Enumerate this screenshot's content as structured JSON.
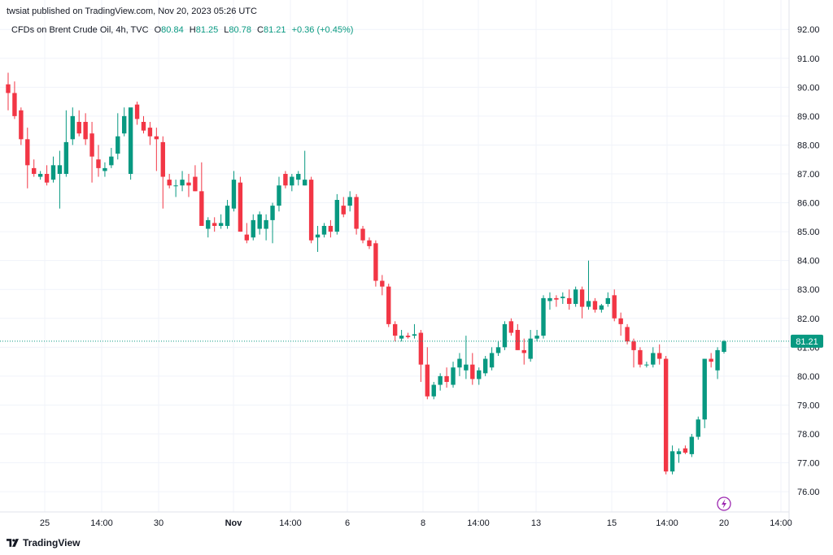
{
  "header": {
    "published": "twsiat published on TradingView.com, Nov 20, 2023 05:26 UTC"
  },
  "legend": {
    "symbol": "CFDs on Brent Crude Oil, 4h, TVC",
    "open_label": "O",
    "open": "80.84",
    "high_label": "H",
    "high": "81.25",
    "low_label": "L",
    "low": "80.78",
    "close_label": "C",
    "close": "81.21",
    "change": "+0.36 (+0.45%)"
  },
  "footer": {
    "brand": "TradingView"
  },
  "colors": {
    "up": "#089981",
    "down": "#f23645",
    "grid": "#f0f3fa",
    "price_line": "#089981",
    "accent": "#9c27b0"
  },
  "icons": {
    "replay": "lightning-icon",
    "logo": "tradingview-logo-icon"
  },
  "chart_data": {
    "type": "candlestick",
    "title": "CFDs on Brent Crude Oil, 4h, TVC",
    "ylim": [
      75.3,
      92.4
    ],
    "y_ticks": [
      "92.00",
      "91.00",
      "90.00",
      "89.00",
      "88.00",
      "87.00",
      "86.00",
      "85.00",
      "84.00",
      "83.00",
      "82.00",
      "81.00",
      "80.00",
      "79.00",
      "78.00",
      "77.00",
      "76.00"
    ],
    "x_ticks": [
      "25",
      "14:00",
      "30",
      "Nov",
      "14:00",
      "6",
      "8",
      "14:00",
      "13",
      "15",
      "14:00",
      "20",
      "14:00"
    ],
    "last_price": "81.21",
    "series": [
      {
        "o": 90.1,
        "h": 90.5,
        "l": 89.2,
        "c": 89.8
      },
      {
        "o": 89.8,
        "h": 90.2,
        "l": 88.9,
        "c": 89.0
      },
      {
        "o": 89.2,
        "h": 89.3,
        "l": 88.0,
        "c": 88.2
      },
      {
        "o": 88.2,
        "h": 88.6,
        "l": 86.5,
        "c": 87.3
      },
      {
        "o": 87.2,
        "h": 87.5,
        "l": 86.9,
        "c": 87.0
      },
      {
        "o": 86.9,
        "h": 87.1,
        "l": 86.8,
        "c": 87.0
      },
      {
        "o": 87.0,
        "h": 87.3,
        "l": 86.6,
        "c": 86.7
      },
      {
        "o": 86.8,
        "h": 87.6,
        "l": 86.7,
        "c": 87.3
      },
      {
        "o": 87.0,
        "h": 87.8,
        "l": 85.8,
        "c": 87.3
      },
      {
        "o": 87.0,
        "h": 89.2,
        "l": 86.9,
        "c": 88.1
      },
      {
        "o": 88.2,
        "h": 89.3,
        "l": 88.0,
        "c": 89.0
      },
      {
        "o": 88.8,
        "h": 89.2,
        "l": 88.3,
        "c": 88.4
      },
      {
        "o": 88.8,
        "h": 89.1,
        "l": 88.0,
        "c": 88.2
      },
      {
        "o": 88.4,
        "h": 88.8,
        "l": 86.7,
        "c": 87.6
      },
      {
        "o": 87.5,
        "h": 88.0,
        "l": 86.9,
        "c": 87.2
      },
      {
        "o": 87.1,
        "h": 87.4,
        "l": 86.9,
        "c": 87.2
      },
      {
        "o": 87.3,
        "h": 87.9,
        "l": 87.2,
        "c": 87.6
      },
      {
        "o": 87.7,
        "h": 89.1,
        "l": 87.5,
        "c": 88.3
      },
      {
        "o": 88.4,
        "h": 89.3,
        "l": 88.3,
        "c": 89.0
      },
      {
        "o": 87.0,
        "h": 89.2,
        "l": 86.8,
        "c": 89.3
      },
      {
        "o": 89.4,
        "h": 89.5,
        "l": 88.7,
        "c": 88.9
      },
      {
        "o": 88.8,
        "h": 89.0,
        "l": 88.4,
        "c": 88.5
      },
      {
        "o": 88.6,
        "h": 88.8,
        "l": 88.0,
        "c": 88.3
      },
      {
        "o": 88.3,
        "h": 88.6,
        "l": 87.1,
        "c": 88.2
      },
      {
        "o": 88.1,
        "h": 88.3,
        "l": 85.8,
        "c": 86.9
      },
      {
        "o": 86.8,
        "h": 87.0,
        "l": 86.5,
        "c": 86.6
      },
      {
        "o": 86.6,
        "h": 86.8,
        "l": 86.2,
        "c": 86.6
      },
      {
        "o": 86.6,
        "h": 87.1,
        "l": 86.4,
        "c": 86.8
      },
      {
        "o": 86.7,
        "h": 87.0,
        "l": 86.2,
        "c": 86.6
      },
      {
        "o": 86.9,
        "h": 87.3,
        "l": 86.4,
        "c": 86.4
      },
      {
        "o": 86.4,
        "h": 87.4,
        "l": 85.2,
        "c": 85.2
      },
      {
        "o": 85.1,
        "h": 85.5,
        "l": 84.8,
        "c": 85.4
      },
      {
        "o": 85.3,
        "h": 85.5,
        "l": 85.0,
        "c": 85.2
      },
      {
        "o": 85.2,
        "h": 85.6,
        "l": 85.1,
        "c": 85.3
      },
      {
        "o": 85.2,
        "h": 86.1,
        "l": 85.1,
        "c": 85.9
      },
      {
        "o": 85.8,
        "h": 87.1,
        "l": 85.7,
        "c": 86.8
      },
      {
        "o": 86.7,
        "h": 86.9,
        "l": 85.0,
        "c": 85.0
      },
      {
        "o": 84.9,
        "h": 85.3,
        "l": 84.6,
        "c": 84.7
      },
      {
        "o": 84.8,
        "h": 85.6,
        "l": 84.7,
        "c": 85.4
      },
      {
        "o": 85.1,
        "h": 85.7,
        "l": 84.9,
        "c": 85.6
      },
      {
        "o": 85.1,
        "h": 85.6,
        "l": 84.7,
        "c": 85.4
      },
      {
        "o": 85.4,
        "h": 86.0,
        "l": 84.6,
        "c": 85.9
      },
      {
        "o": 85.9,
        "h": 86.9,
        "l": 85.7,
        "c": 86.6
      },
      {
        "o": 87.0,
        "h": 87.1,
        "l": 86.5,
        "c": 86.6
      },
      {
        "o": 86.6,
        "h": 87.0,
        "l": 86.4,
        "c": 86.9
      },
      {
        "o": 86.8,
        "h": 87.1,
        "l": 86.6,
        "c": 87.0
      },
      {
        "o": 86.6,
        "h": 87.8,
        "l": 86.6,
        "c": 86.8
      },
      {
        "o": 86.8,
        "h": 86.9,
        "l": 84.6,
        "c": 84.7
      },
      {
        "o": 84.8,
        "h": 85.2,
        "l": 84.3,
        "c": 84.9
      },
      {
        "o": 84.9,
        "h": 85.3,
        "l": 84.8,
        "c": 85.2
      },
      {
        "o": 85.2,
        "h": 85.4,
        "l": 84.8,
        "c": 85.0
      },
      {
        "o": 85.0,
        "h": 86.3,
        "l": 84.9,
        "c": 86.1
      },
      {
        "o": 85.9,
        "h": 86.2,
        "l": 85.5,
        "c": 85.6
      },
      {
        "o": 85.9,
        "h": 86.4,
        "l": 85.7,
        "c": 86.2
      },
      {
        "o": 86.2,
        "h": 86.3,
        "l": 84.9,
        "c": 85.1
      },
      {
        "o": 85.1,
        "h": 85.2,
        "l": 84.6,
        "c": 84.7
      },
      {
        "o": 84.7,
        "h": 84.8,
        "l": 84.4,
        "c": 84.5
      },
      {
        "o": 84.6,
        "h": 84.7,
        "l": 83.1,
        "c": 83.3
      },
      {
        "o": 83.3,
        "h": 83.5,
        "l": 82.8,
        "c": 83.1
      },
      {
        "o": 83.1,
        "h": 83.2,
        "l": 81.7,
        "c": 81.8
      },
      {
        "o": 81.8,
        "h": 81.9,
        "l": 81.2,
        "c": 81.4
      },
      {
        "o": 81.3,
        "h": 81.6,
        "l": 81.2,
        "c": 81.4
      },
      {
        "o": 81.4,
        "h": 81.5,
        "l": 81.3,
        "c": 81.35
      },
      {
        "o": 81.4,
        "h": 81.8,
        "l": 81.3,
        "c": 81.45
      },
      {
        "o": 81.5,
        "h": 81.6,
        "l": 79.8,
        "c": 80.4
      },
      {
        "o": 80.4,
        "h": 81.0,
        "l": 79.2,
        "c": 79.3
      },
      {
        "o": 79.3,
        "h": 79.8,
        "l": 79.2,
        "c": 79.7
      },
      {
        "o": 79.7,
        "h": 80.1,
        "l": 79.5,
        "c": 80.0
      },
      {
        "o": 80.0,
        "h": 80.3,
        "l": 79.6,
        "c": 79.8
      },
      {
        "o": 79.7,
        "h": 80.5,
        "l": 79.6,
        "c": 80.3
      },
      {
        "o": 80.3,
        "h": 80.8,
        "l": 80.0,
        "c": 80.6
      },
      {
        "o": 80.2,
        "h": 81.4,
        "l": 79.9,
        "c": 80.4
      },
      {
        "o": 80.4,
        "h": 80.8,
        "l": 79.7,
        "c": 79.9
      },
      {
        "o": 79.9,
        "h": 80.3,
        "l": 79.7,
        "c": 80.2
      },
      {
        "o": 80.1,
        "h": 80.7,
        "l": 80.0,
        "c": 80.6
      },
      {
        "o": 80.3,
        "h": 81.0,
        "l": 80.2,
        "c": 80.8
      },
      {
        "o": 80.8,
        "h": 81.2,
        "l": 80.7,
        "c": 81.0
      },
      {
        "o": 81.0,
        "h": 81.9,
        "l": 80.9,
        "c": 81.8
      },
      {
        "o": 81.9,
        "h": 82.0,
        "l": 81.4,
        "c": 81.5
      },
      {
        "o": 81.6,
        "h": 81.8,
        "l": 80.9,
        "c": 80.9
      },
      {
        "o": 80.9,
        "h": 81.3,
        "l": 80.4,
        "c": 80.8
      },
      {
        "o": 80.6,
        "h": 81.6,
        "l": 80.5,
        "c": 81.3
      },
      {
        "o": 81.3,
        "h": 81.6,
        "l": 81.2,
        "c": 81.4
      },
      {
        "o": 81.4,
        "h": 82.8,
        "l": 81.3,
        "c": 82.7
      },
      {
        "o": 82.6,
        "h": 82.9,
        "l": 82.3,
        "c": 82.7
      },
      {
        "o": 82.7,
        "h": 82.8,
        "l": 82.4,
        "c": 82.65
      },
      {
        "o": 82.7,
        "h": 82.9,
        "l": 82.5,
        "c": 82.75
      },
      {
        "o": 82.7,
        "h": 83.0,
        "l": 82.3,
        "c": 82.5
      },
      {
        "o": 82.5,
        "h": 83.1,
        "l": 82.4,
        "c": 83.0
      },
      {
        "o": 83.0,
        "h": 83.1,
        "l": 82.0,
        "c": 82.4
      },
      {
        "o": 82.4,
        "h": 84.0,
        "l": 82.3,
        "c": 82.6
      },
      {
        "o": 82.6,
        "h": 82.7,
        "l": 82.2,
        "c": 82.3
      },
      {
        "o": 82.3,
        "h": 82.5,
        "l": 82.2,
        "c": 82.45
      },
      {
        "o": 82.5,
        "h": 82.9,
        "l": 82.4,
        "c": 82.7
      },
      {
        "o": 82.8,
        "h": 83.0,
        "l": 81.9,
        "c": 82.0
      },
      {
        "o": 82.0,
        "h": 82.2,
        "l": 81.4,
        "c": 81.8
      },
      {
        "o": 81.7,
        "h": 81.8,
        "l": 81.1,
        "c": 81.2
      },
      {
        "o": 81.2,
        "h": 81.3,
        "l": 80.3,
        "c": 80.9
      },
      {
        "o": 80.9,
        "h": 81.0,
        "l": 80.3,
        "c": 80.4
      },
      {
        "o": 80.4,
        "h": 80.5,
        "l": 80.3,
        "c": 80.4
      },
      {
        "o": 80.4,
        "h": 81.0,
        "l": 80.3,
        "c": 80.8
      },
      {
        "o": 80.8,
        "h": 81.1,
        "l": 80.4,
        "c": 80.6
      },
      {
        "o": 80.6,
        "h": 80.7,
        "l": 76.6,
        "c": 76.7
      },
      {
        "o": 76.7,
        "h": 77.6,
        "l": 76.6,
        "c": 77.4
      },
      {
        "o": 77.3,
        "h": 77.5,
        "l": 77.0,
        "c": 77.4
      },
      {
        "o": 77.5,
        "h": 77.6,
        "l": 77.3,
        "c": 77.35
      },
      {
        "o": 77.3,
        "h": 78.0,
        "l": 77.2,
        "c": 77.9
      },
      {
        "o": 77.9,
        "h": 78.6,
        "l": 77.8,
        "c": 78.5
      },
      {
        "o": 78.5,
        "h": 80.6,
        "l": 78.2,
        "c": 80.6
      },
      {
        "o": 80.6,
        "h": 80.8,
        "l": 80.3,
        "c": 80.5
      },
      {
        "o": 80.2,
        "h": 81.0,
        "l": 79.9,
        "c": 80.9
      },
      {
        "o": 80.84,
        "h": 81.25,
        "l": 80.78,
        "c": 81.21
      }
    ]
  }
}
